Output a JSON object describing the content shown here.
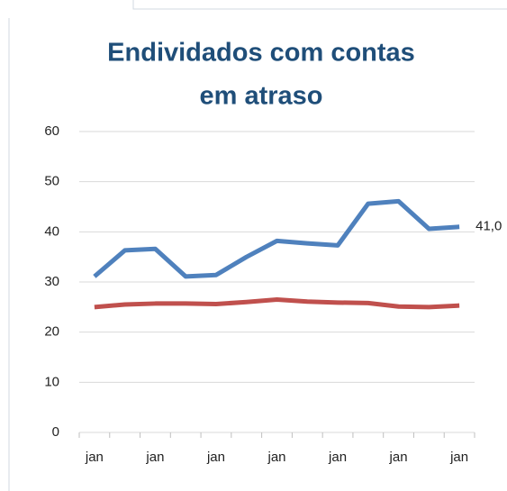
{
  "chart_data": {
    "type": "line",
    "title": [
      "Endividados com contas",
      "em atraso"
    ],
    "categories": [
      "jan",
      null,
      "jan",
      null,
      "jan",
      null,
      "jan",
      null,
      "jan",
      null,
      "jan",
      null,
      "jan"
    ],
    "series": [
      {
        "color": "#4f81bd",
        "values": [
          31.1,
          36.3,
          36.6,
          31.1,
          31.4,
          35,
          38.2,
          37.7,
          37.3,
          45.6,
          46.1,
          40.6,
          41.0
        ],
        "value_labels": [
          null,
          null,
          null,
          null,
          null,
          null,
          null,
          null,
          null,
          null,
          null,
          null,
          "41,0"
        ]
      },
      {
        "color": "#c0504d",
        "values": [
          25,
          25.5,
          25.7,
          25.7,
          25.6,
          26,
          26.5,
          26.1,
          25.9,
          25.8,
          25.1,
          25,
          25.3
        ]
      }
    ],
    "ylim": [
      0,
      60
    ],
    "yticks": [
      0,
      10,
      20,
      30,
      40,
      50,
      60
    ],
    "grid": true
  }
}
